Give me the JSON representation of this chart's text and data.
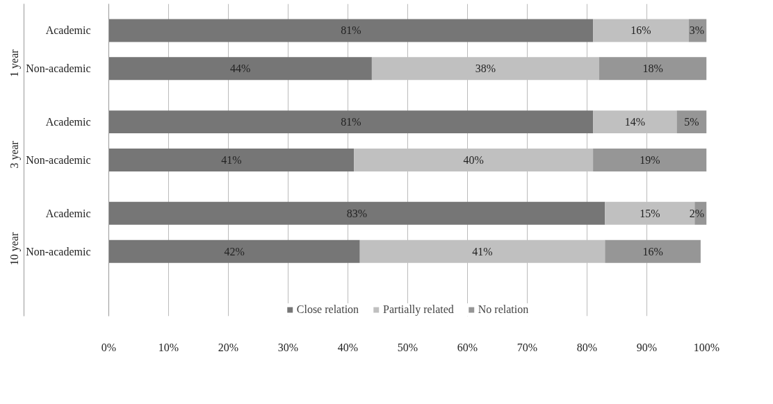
{
  "chart_data": {
    "type": "bar",
    "orientation": "horizontal",
    "stacked": true,
    "categories": [
      "Academic",
      "Non-academic",
      "Academic",
      "Non-academic",
      "Academic",
      "Non-academic"
    ],
    "annotations": [
      "1 year",
      "3 year",
      "10 year"
    ],
    "series": [
      {
        "name": "Close relation",
        "color": "#767676",
        "values": [
          81,
          44,
          81,
          41,
          83,
          42
        ],
        "value_labels": [
          "81%",
          "44%",
          "81%",
          "41%",
          "83%",
          "42%"
        ]
      },
      {
        "name": "Partially related",
        "color": "#c0c0c0",
        "values": [
          16,
          38,
          14,
          40,
          15,
          41
        ],
        "value_labels": [
          "16%",
          "38%",
          "14%",
          "40%",
          "15%",
          "41%"
        ]
      },
      {
        "name": "No relation",
        "color": "#969696",
        "values": [
          3,
          18,
          5,
          19,
          2,
          16
        ],
        "value_labels": [
          "3%",
          "18%",
          "5%",
          "19%",
          "2%",
          "16%"
        ]
      }
    ],
    "xlim": [
      0,
      100
    ],
    "xticks": [
      {
        "value": 0,
        "label": "0%"
      },
      {
        "value": 10,
        "label": "10%"
      },
      {
        "value": 20,
        "label": "20%"
      },
      {
        "value": 30,
        "label": "30%"
      },
      {
        "value": 40,
        "label": "40%"
      },
      {
        "value": 50,
        "label": "50%"
      },
      {
        "value": 60,
        "label": "60%"
      },
      {
        "value": 70,
        "label": "70%"
      },
      {
        "value": 80,
        "label": "80%"
      },
      {
        "value": 90,
        "label": "90%"
      },
      {
        "value": 100,
        "label": "100%"
      }
    ],
    "grid": "x",
    "legend": "bottom"
  }
}
